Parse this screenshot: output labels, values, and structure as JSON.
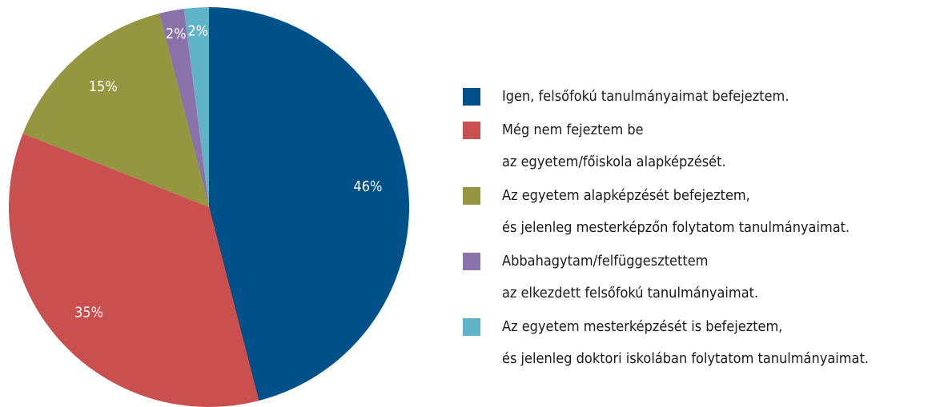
{
  "chart_data": {
    "type": "pie",
    "categories": [
      "Igen, felsőfokú tanulmányaimat befejeztem.",
      "Még nem fejeztem be\naz egyetem/főiskola alapképzését.",
      "Az egyetem alapképzését befejeztem,\nés jelenleg mesterképzőn folytatom tanulmányaimat.",
      "Abbahagytam/felfüggesztettem\naz elkezdett felsőfokú tanulmányaimat.",
      "Az egyetem mesterképzését is befejeztem,\nés jelenleg doktori iskolában folytatom tanulmányaimat."
    ],
    "values": [
      46,
      35,
      15,
      2,
      2
    ],
    "value_labels": [
      "46%",
      "35%",
      "15%",
      "2%",
      "2%"
    ],
    "colors": [
      "#00508a",
      "#c9504f",
      "#959640",
      "#8a72aa",
      "#5fb4c8"
    ],
    "legend": "right"
  }
}
